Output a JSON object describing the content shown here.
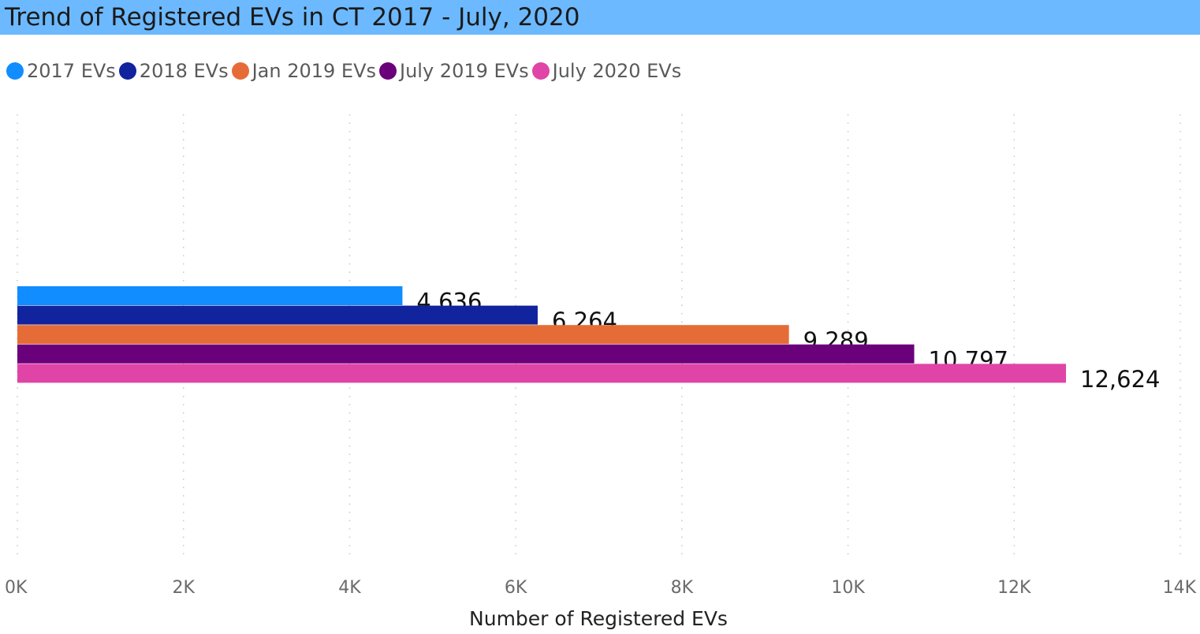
{
  "header": {
    "title": "Trend of Registered EVs in CT 2017 - July, 2020"
  },
  "chart_data": {
    "type": "bar",
    "orientation": "horizontal",
    "title": "Trend of Registered EVs in CT 2017 - July, 2020",
    "xlabel": "Number of Registered EVs",
    "ylabel": "",
    "xlim": [
      0,
      14000
    ],
    "x_ticks": [
      0,
      2000,
      4000,
      6000,
      8000,
      10000,
      12000,
      14000
    ],
    "x_tick_labels": [
      "0K",
      "2K",
      "4K",
      "6K",
      "8K",
      "10K",
      "12K",
      "14K"
    ],
    "grid": "vertical dotted",
    "legend_position": "top-left",
    "series": [
      {
        "name": "2017 EVs",
        "value": 4636,
        "label": "4,636",
        "color": "#118dff"
      },
      {
        "name": "2018 EVs",
        "value": 6264,
        "label": "6,264",
        "color": "#12239e"
      },
      {
        "name": "Jan 2019 EVs",
        "value": 9289,
        "label": "9,289",
        "color": "#e66c37"
      },
      {
        "name": "July 2019 EVs",
        "value": 10797,
        "label": "10,797",
        "color": "#6b007b"
      },
      {
        "name": "July 2020 EVs",
        "value": 12624,
        "label": "12,624",
        "color": "#e044a7"
      }
    ]
  }
}
